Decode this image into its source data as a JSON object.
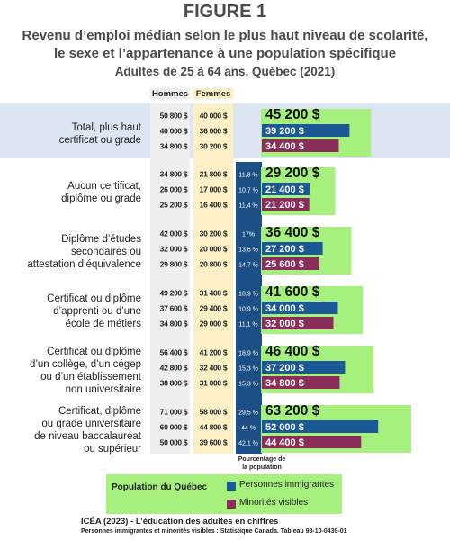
{
  "figure_label": "FIGURE 1",
  "subtitle_line1": "Revenu d’emploi médian selon le plus haut niveau de scolarité,",
  "subtitle_line2": "le sexe et l’appartenance à une population spécifique",
  "subtitle_line3": "Adultes de 25 à 64 ans, Québec (2021)",
  "legend": {
    "title": "Population du Québec",
    "immigrants": "Personnes immigrantes",
    "visible": "Minorités visibles"
  },
  "source_line1": "ICÉA (2023) - L’éducation des adultes en chiffres",
  "source_line2": "Personnes immigrantes et minorités visibles : Statistique Canada. Tableau 98-10-0439-01",
  "colors": {
    "population": "#a6f07e",
    "immigrants": "#1b5896",
    "visible": "#8b2d5a",
    "men_column": "#eeeeee",
    "women_column": "#fdf0c6",
    "pct_column": "#1b4f86",
    "total_band": "#dce6f2"
  },
  "chart_data": {
    "type": "bar",
    "orientation": "horizontal",
    "column_headers": {
      "men": "Hommes",
      "women": "Femmes"
    },
    "pct_column_label": "Pourcentage de la population",
    "series_names": [
      "Population du Québec",
      "Personnes immigrantes",
      "Minorités visibles"
    ],
    "xlim": [
      0,
      75000
    ],
    "categories": [
      {
        "label": [
          "Total, plus haut",
          "certificat ou grade"
        ],
        "highlight": true,
        "values": [
          45200,
          39200,
          34400
        ],
        "value_labels": [
          "45 200 $",
          "39 200 $",
          "34 400 $"
        ],
        "men": [
          "50 800 $",
          "40 000 $",
          "34 800 $"
        ],
        "women": [
          "40 000 $",
          "36 000 $",
          "30 200 $"
        ],
        "pct": []
      },
      {
        "label": [
          "Aucun certificat,",
          "diplôme ou grade"
        ],
        "values": [
          29200,
          21400,
          21200
        ],
        "value_labels": [
          "29 200 $",
          "21 400 $",
          "21 200 $"
        ],
        "men": [
          "34 800 $",
          "26 000 $",
          "25 200 $"
        ],
        "women": [
          "21 800 $",
          "17 000 $",
          "16 400 $"
        ],
        "pct": [
          "11,8 %",
          "10,7 %",
          "11,4 %"
        ]
      },
      {
        "label": [
          "Diplôme d’études",
          "secondaires ou",
          "attestation d’équivalence"
        ],
        "values": [
          36400,
          27200,
          25600
        ],
        "value_labels": [
          "36 400 $",
          "27 200 $",
          "25 600 $"
        ],
        "men": [
          "42 000 $",
          "32 000 $",
          "29 800 $"
        ],
        "women": [
          "30 200 $",
          "20 000 $",
          "20 800 $"
        ],
        "pct": [
          "17%",
          "13,6 %",
          "14,7 %"
        ]
      },
      {
        "label": [
          "Certificat ou diplôme",
          "d’apprenti ou d’une",
          "école de métiers"
        ],
        "values": [
          41600,
          34000,
          32000
        ],
        "value_labels": [
          "41 600 $",
          "34 000 $",
          "32 000 $"
        ],
        "men": [
          "49 200 $",
          "37 600 $",
          "34 800 $"
        ],
        "women": [
          "31 400 $",
          "29 400 $",
          "29 000 $"
        ],
        "pct": [
          "18,9 %",
          "10,9 %",
          "11,1 %"
        ]
      },
      {
        "label": [
          "Certificat ou diplôme",
          "d’un collège, d’un cégep",
          "ou d’un établissement",
          "non universitaire"
        ],
        "values": [
          46400,
          37200,
          34800
        ],
        "value_labels": [
          "46 400 $",
          "37 200 $",
          "34 800 $"
        ],
        "men": [
          "56 400 $",
          "42 800 $",
          "38 800 $"
        ],
        "women": [
          "41 200 $",
          "32 400 $",
          "31 000 $"
        ],
        "pct": [
          "18,9 %",
          "15,3 %",
          "15,3 %"
        ]
      },
      {
        "label": [
          "Certificat, diplôme",
          "ou grade universitaire",
          "de niveau baccalauréat",
          "ou supérieur"
        ],
        "values": [
          63200,
          52000,
          44400
        ],
        "value_labels": [
          "63 200 $",
          "52 000 $",
          "44 400 $"
        ],
        "men": [
          "71 000 $",
          "60 000 $",
          "50 000 $"
        ],
        "women": [
          "58 000 $",
          "44 800 $",
          "39 600 $"
        ],
        "pct": [
          "29,5 %",
          "44 %",
          "42,1 %"
        ]
      }
    ]
  }
}
